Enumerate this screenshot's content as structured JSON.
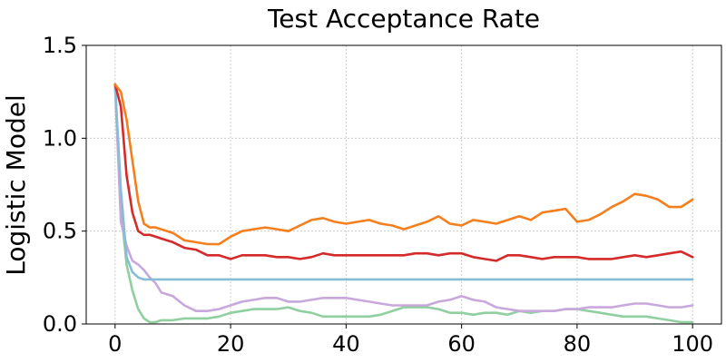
{
  "chart_data": {
    "type": "line",
    "title": "Test Acceptance Rate",
    "xlabel": "",
    "ylabel": "Logistic Model",
    "xlim": [
      -5,
      105
    ],
    "ylim": [
      0,
      1.5
    ],
    "xticks": [
      0,
      20,
      40,
      60,
      80,
      100
    ],
    "xtick_labels": [
      "0",
      "20",
      "40",
      "60",
      "80",
      "100"
    ],
    "yticks": [
      0.0,
      0.5,
      1.0,
      1.5
    ],
    "ytick_labels": [
      "0.0",
      "0.5",
      "1.0",
      "1.5"
    ],
    "grid": true,
    "legend": false,
    "series": [
      {
        "color": "#8fcfa0",
        "x": [
          0,
          1,
          2,
          3,
          4,
          5,
          6,
          7,
          8,
          10,
          12,
          14,
          16,
          18,
          20,
          22,
          24,
          26,
          28,
          30,
          32,
          34,
          36,
          38,
          40,
          42,
          44,
          46,
          48,
          50,
          52,
          54,
          56,
          58,
          60,
          62,
          64,
          66,
          68,
          70,
          72,
          74,
          76,
          78,
          80,
          82,
          84,
          86,
          88,
          90,
          92,
          94,
          96,
          98,
          100
        ],
        "y": [
          1.29,
          0.62,
          0.32,
          0.18,
          0.08,
          0.03,
          0.01,
          0.01,
          0.02,
          0.02,
          0.03,
          0.03,
          0.03,
          0.04,
          0.06,
          0.07,
          0.08,
          0.08,
          0.08,
          0.09,
          0.07,
          0.06,
          0.04,
          0.04,
          0.04,
          0.04,
          0.04,
          0.05,
          0.07,
          0.09,
          0.09,
          0.09,
          0.08,
          0.06,
          0.06,
          0.05,
          0.06,
          0.06,
          0.05,
          0.07,
          0.06,
          0.07,
          0.07,
          0.08,
          0.08,
          0.07,
          0.06,
          0.05,
          0.04,
          0.04,
          0.04,
          0.03,
          0.02,
          0.01,
          0.01
        ]
      },
      {
        "color": "#c8a8dc",
        "x": [
          0,
          1,
          2,
          3,
          4,
          5,
          6,
          7,
          8,
          10,
          12,
          14,
          16,
          18,
          20,
          22,
          24,
          26,
          28,
          30,
          32,
          34,
          36,
          38,
          40,
          42,
          44,
          46,
          48,
          50,
          52,
          54,
          56,
          58,
          60,
          62,
          64,
          66,
          68,
          70,
          72,
          74,
          76,
          78,
          80,
          82,
          84,
          86,
          88,
          90,
          92,
          94,
          96,
          98,
          100
        ],
        "y": [
          1.29,
          0.55,
          0.42,
          0.34,
          0.32,
          0.29,
          0.25,
          0.22,
          0.17,
          0.15,
          0.1,
          0.07,
          0.07,
          0.08,
          0.1,
          0.12,
          0.13,
          0.14,
          0.14,
          0.12,
          0.12,
          0.13,
          0.14,
          0.14,
          0.14,
          0.13,
          0.12,
          0.11,
          0.1,
          0.1,
          0.1,
          0.1,
          0.12,
          0.13,
          0.15,
          0.13,
          0.12,
          0.09,
          0.08,
          0.07,
          0.07,
          0.07,
          0.07,
          0.08,
          0.08,
          0.09,
          0.09,
          0.09,
          0.1,
          0.11,
          0.11,
          0.1,
          0.09,
          0.09,
          0.1
        ]
      },
      {
        "color": "#88bcd4",
        "x": [
          0,
          1,
          2,
          3,
          4,
          5,
          6,
          7,
          8,
          10,
          20,
          30,
          40,
          50,
          60,
          70,
          80,
          90,
          100
        ],
        "y": [
          1.29,
          0.72,
          0.36,
          0.28,
          0.25,
          0.24,
          0.24,
          0.24,
          0.24,
          0.24,
          0.24,
          0.24,
          0.24,
          0.24,
          0.24,
          0.24,
          0.24,
          0.24,
          0.24
        ]
      },
      {
        "color": "#d42a2a",
        "x": [
          0,
          1,
          2,
          3,
          4,
          5,
          6,
          7,
          8,
          10,
          12,
          14,
          16,
          18,
          20,
          22,
          24,
          26,
          28,
          30,
          32,
          34,
          36,
          38,
          40,
          42,
          44,
          46,
          48,
          50,
          52,
          54,
          56,
          58,
          60,
          62,
          64,
          66,
          68,
          70,
          72,
          74,
          76,
          78,
          80,
          82,
          84,
          86,
          88,
          90,
          92,
          94,
          96,
          98,
          100
        ],
        "y": [
          1.29,
          1.17,
          0.8,
          0.6,
          0.5,
          0.48,
          0.48,
          0.47,
          0.46,
          0.44,
          0.41,
          0.4,
          0.37,
          0.37,
          0.35,
          0.37,
          0.37,
          0.37,
          0.36,
          0.36,
          0.35,
          0.36,
          0.38,
          0.37,
          0.37,
          0.37,
          0.37,
          0.37,
          0.37,
          0.37,
          0.38,
          0.38,
          0.37,
          0.38,
          0.38,
          0.36,
          0.35,
          0.34,
          0.37,
          0.37,
          0.36,
          0.35,
          0.36,
          0.36,
          0.36,
          0.35,
          0.35,
          0.35,
          0.36,
          0.37,
          0.36,
          0.37,
          0.38,
          0.39,
          0.36
        ]
      },
      {
        "color": "#f57f1e",
        "x": [
          0,
          1,
          2,
          3,
          4,
          5,
          6,
          7,
          8,
          10,
          12,
          14,
          16,
          18,
          20,
          22,
          24,
          26,
          28,
          30,
          32,
          34,
          36,
          38,
          40,
          42,
          44,
          46,
          48,
          50,
          52,
          54,
          56,
          58,
          60,
          62,
          64,
          66,
          68,
          70,
          72,
          74,
          76,
          78,
          80,
          82,
          84,
          86,
          88,
          90,
          92,
          94,
          96,
          98,
          100
        ],
        "y": [
          1.29,
          1.25,
          1.1,
          0.88,
          0.66,
          0.54,
          0.52,
          0.52,
          0.51,
          0.49,
          0.45,
          0.44,
          0.43,
          0.43,
          0.47,
          0.5,
          0.51,
          0.52,
          0.51,
          0.5,
          0.53,
          0.56,
          0.57,
          0.55,
          0.54,
          0.55,
          0.56,
          0.54,
          0.53,
          0.51,
          0.53,
          0.55,
          0.58,
          0.54,
          0.53,
          0.56,
          0.55,
          0.54,
          0.56,
          0.58,
          0.56,
          0.6,
          0.61,
          0.62,
          0.55,
          0.56,
          0.59,
          0.63,
          0.66,
          0.7,
          0.69,
          0.67,
          0.63,
          0.63,
          0.67
        ]
      }
    ]
  }
}
